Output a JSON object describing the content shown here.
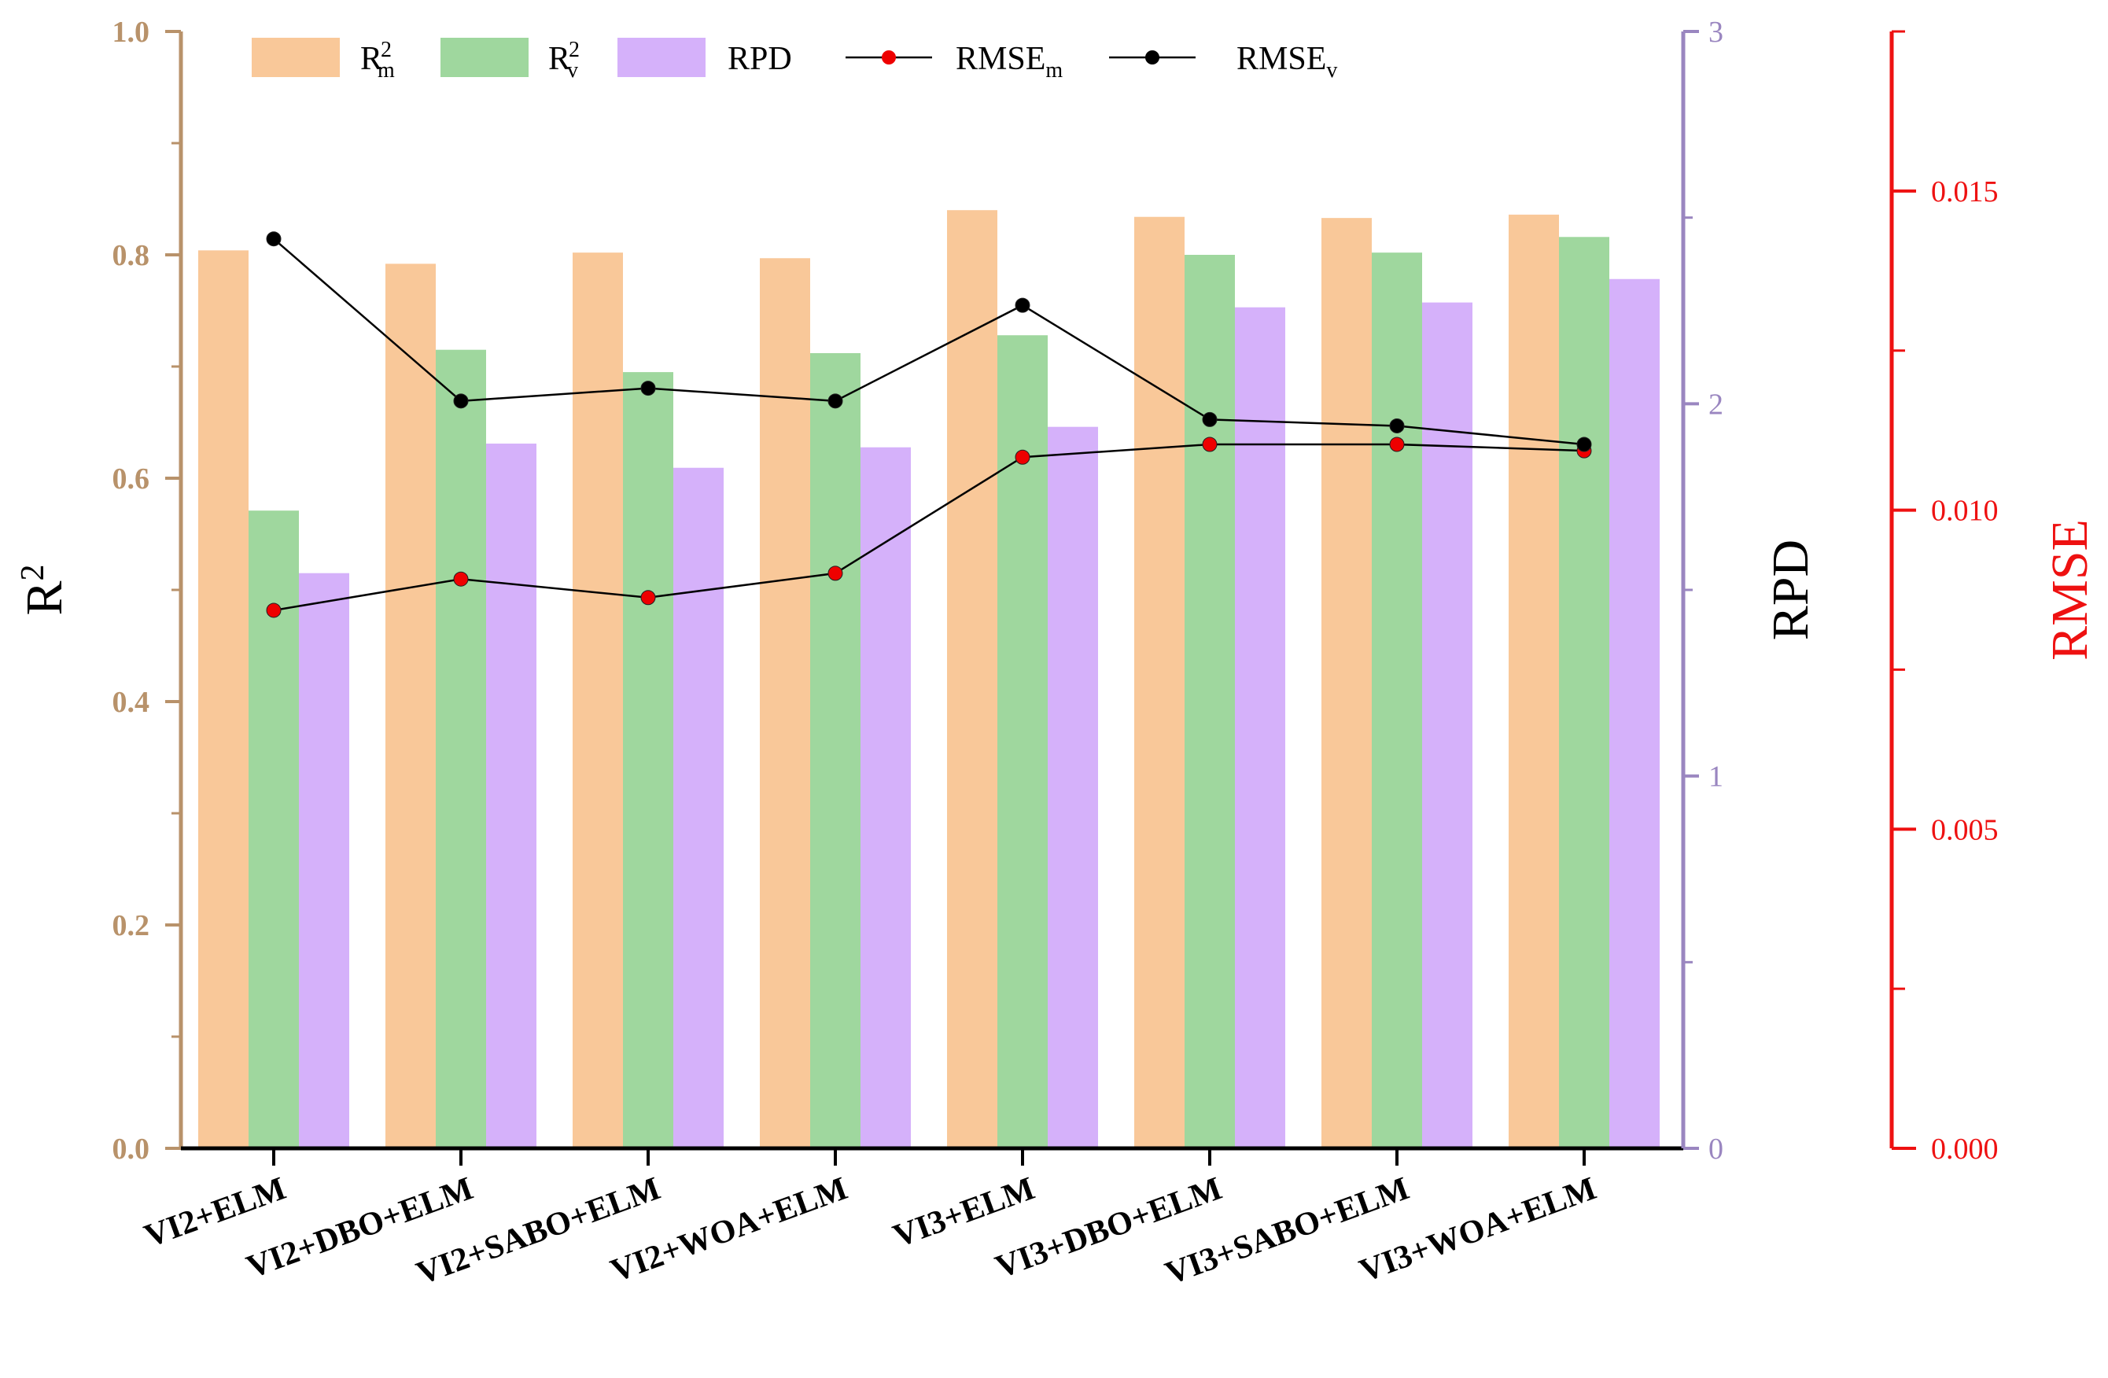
{
  "chart_data": {
    "type": "bar",
    "categories": [
      "VI2+ELM",
      "VI2+DBO+ELM",
      "VI2+SABO+ELM",
      "VI2+WOA+ELM",
      "VI3+ELM",
      "VI3+DBO+ELM",
      "VI3+SABO+ELM",
      "VI3+WOA+ELM"
    ],
    "series": [
      {
        "name": "R2m",
        "label": "R",
        "sub": "m",
        "sup": "2",
        "kind": "bar",
        "axis": "R2",
        "color": "#f9c899",
        "values": [
          0.804,
          0.792,
          0.802,
          0.797,
          0.84,
          0.834,
          0.833,
          0.836
        ]
      },
      {
        "name": "R2v",
        "label": "R",
        "sub": "v",
        "sup": "2",
        "kind": "bar",
        "axis": "R2",
        "color": "#9fd79e",
        "values": [
          0.571,
          0.715,
          0.695,
          0.712,
          0.728,
          0.8,
          0.802,
          0.816
        ]
      },
      {
        "name": "RPD",
        "label": "RPD",
        "sub": "",
        "sup": "",
        "kind": "bar",
        "axis": "RPD",
        "color": "#d5b1fa",
        "values": [
          1.545,
          1.893,
          1.828,
          1.883,
          1.938,
          2.259,
          2.272,
          2.335
        ]
      },
      {
        "name": "RMSEm",
        "label": "RMSE",
        "sub": "m",
        "sup": "",
        "kind": "line",
        "axis": "RMSE",
        "color": "#ee0000",
        "values": [
          0.00843,
          0.00892,
          0.00863,
          0.00901,
          0.01083,
          0.01103,
          0.01103,
          0.01093
        ]
      },
      {
        "name": "RMSEv",
        "label": "RMSE",
        "sub": "v",
        "sup": "",
        "kind": "line",
        "axis": "RMSE",
        "color": "#000000",
        "values": [
          0.01425,
          0.01171,
          0.01191,
          0.01171,
          0.01321,
          0.01142,
          0.01132,
          0.01103
        ]
      }
    ],
    "axes": {
      "R2": {
        "title": "R",
        "title_sup": "2",
        "range": [
          0,
          1.0
        ],
        "ticks": [
          "0.0",
          "0.2",
          "0.4",
          "0.6",
          "0.8",
          "1.0"
        ],
        "color": "#b8926a"
      },
      "RPD": {
        "title": "RPD",
        "range": [
          0,
          3
        ],
        "ticks": [
          "0",
          "1",
          "2",
          "3"
        ],
        "color": "#9a86c0"
      },
      "RMSE": {
        "title": "RMSE",
        "range": [
          0,
          0.0175
        ],
        "ticks": [
          "0.000",
          "0.005",
          "0.010",
          "0.015"
        ],
        "color": "#ee1111"
      }
    },
    "legend_position": "top"
  }
}
